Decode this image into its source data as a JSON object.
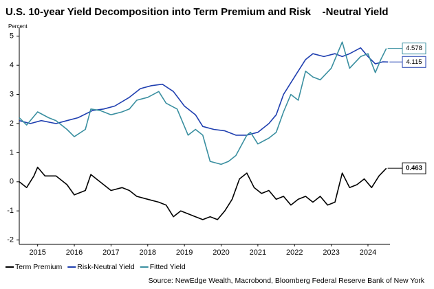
{
  "chart_data": {
    "type": "line",
    "title": "U.S. 10-year Yield Decomposition into Term Premium and Risk    -Neutral Yield",
    "y_label": "Percent",
    "source": "Source: NewEdge Wealth, Macrobond, Bloomberg Federal Reserve Bank of New York",
    "xlim": [
      2015,
      2025.1
    ],
    "xticks": [
      {
        "value": 2015.5,
        "label": "2015"
      },
      {
        "value": 2016.5,
        "label": "2016"
      },
      {
        "value": 2017.5,
        "label": "2017"
      },
      {
        "value": 2018.5,
        "label": "2018"
      },
      {
        "value": 2019.5,
        "label": "2019"
      },
      {
        "value": 2020.5,
        "label": "2020"
      },
      {
        "value": 2021.5,
        "label": "2021"
      },
      {
        "value": 2022.5,
        "label": "2022"
      },
      {
        "value": 2023.5,
        "label": "2023"
      },
      {
        "value": 2024.5,
        "label": "2024"
      }
    ],
    "ylim": [
      -2.15,
      5.3
    ],
    "yticks": [
      -2,
      -1,
      0,
      1,
      2,
      3,
      4,
      5
    ],
    "legend": "bottom-left",
    "series": [
      {
        "name": "Term Premium",
        "color": "#000000",
        "x": [
          2015.0,
          2015.2,
          2015.4,
          2015.5,
          2015.7,
          2016.0,
          2016.3,
          2016.5,
          2016.8,
          2016.95,
          2017.1,
          2017.3,
          2017.5,
          2017.8,
          2018.0,
          2018.2,
          2018.5,
          2018.8,
          2019.0,
          2019.2,
          2019.4,
          2019.6,
          2019.8,
          2020.0,
          2020.2,
          2020.4,
          2020.6,
          2020.8,
          2021.0,
          2021.2,
          2021.4,
          2021.6,
          2021.8,
          2022.0,
          2022.2,
          2022.4,
          2022.6,
          2022.8,
          2023.0,
          2023.2,
          2023.4,
          2023.6,
          2023.8,
          2024.0,
          2024.2,
          2024.4,
          2024.6,
          2024.8,
          2025.0
        ],
        "values": [
          0.0,
          -0.2,
          0.2,
          0.5,
          0.2,
          0.2,
          -0.1,
          -0.45,
          -0.3,
          0.25,
          0.1,
          -0.1,
          -0.3,
          -0.2,
          -0.3,
          -0.5,
          -0.6,
          -0.7,
          -0.8,
          -1.2,
          -1.0,
          -1.1,
          -1.2,
          -1.3,
          -1.2,
          -1.3,
          -1.0,
          -0.6,
          0.1,
          0.3,
          -0.2,
          -0.4,
          -0.3,
          -0.6,
          -0.5,
          -0.8,
          -0.6,
          -0.5,
          -0.7,
          -0.5,
          -0.8,
          -0.7,
          0.3,
          -0.2,
          -0.1,
          0.1,
          -0.2,
          0.2,
          0.463
        ]
      },
      {
        "name": "Risk-Neutral Yield",
        "color": "#1f3fb0",
        "x": [
          2015.0,
          2015.3,
          2015.6,
          2016.0,
          2016.3,
          2016.6,
          2017.0,
          2017.3,
          2017.6,
          2018.0,
          2018.3,
          2018.6,
          2018.9,
          2019.2,
          2019.5,
          2019.8,
          2020.0,
          2020.3,
          2020.6,
          2020.9,
          2021.2,
          2021.5,
          2021.8,
          2022.0,
          2022.2,
          2022.5,
          2022.8,
          2023.0,
          2023.3,
          2023.6,
          2023.8,
          2024.0,
          2024.3,
          2024.5,
          2024.7,
          2024.9,
          2025.05
        ],
        "values": [
          2.1,
          2.0,
          2.1,
          2.0,
          2.1,
          2.2,
          2.45,
          2.5,
          2.6,
          2.9,
          3.2,
          3.3,
          3.35,
          3.1,
          2.6,
          2.3,
          1.9,
          1.8,
          1.75,
          1.6,
          1.6,
          1.7,
          2.0,
          2.3,
          3.0,
          3.6,
          4.2,
          4.4,
          4.3,
          4.4,
          4.3,
          4.4,
          4.6,
          4.3,
          4.05,
          4.12,
          4.115
        ]
      },
      {
        "name": "Fitted Yield",
        "color": "#3a8fa0",
        "x": [
          2015.0,
          2015.2,
          2015.5,
          2015.8,
          2016.0,
          2016.3,
          2016.5,
          2016.8,
          2016.95,
          2017.2,
          2017.5,
          2017.8,
          2018.0,
          2018.2,
          2018.5,
          2018.8,
          2019.0,
          2019.3,
          2019.6,
          2019.8,
          2020.0,
          2020.2,
          2020.5,
          2020.7,
          2020.9,
          2021.2,
          2021.3,
          2021.5,
          2021.8,
          2022.0,
          2022.2,
          2022.4,
          2022.6,
          2022.8,
          2023.0,
          2023.2,
          2023.5,
          2023.8,
          2024.0,
          2024.3,
          2024.5,
          2024.7,
          2024.85,
          2025.0
        ],
        "values": [
          2.2,
          1.95,
          2.4,
          2.2,
          2.1,
          1.8,
          1.55,
          1.8,
          2.5,
          2.45,
          2.3,
          2.4,
          2.5,
          2.8,
          2.9,
          3.1,
          2.7,
          2.5,
          1.6,
          1.8,
          1.6,
          0.7,
          0.6,
          0.7,
          0.9,
          1.6,
          1.7,
          1.3,
          1.5,
          1.7,
          2.4,
          3.0,
          2.8,
          3.8,
          3.6,
          3.5,
          3.9,
          4.8,
          3.9,
          4.3,
          4.4,
          3.75,
          4.2,
          4.578
        ]
      }
    ]
  }
}
